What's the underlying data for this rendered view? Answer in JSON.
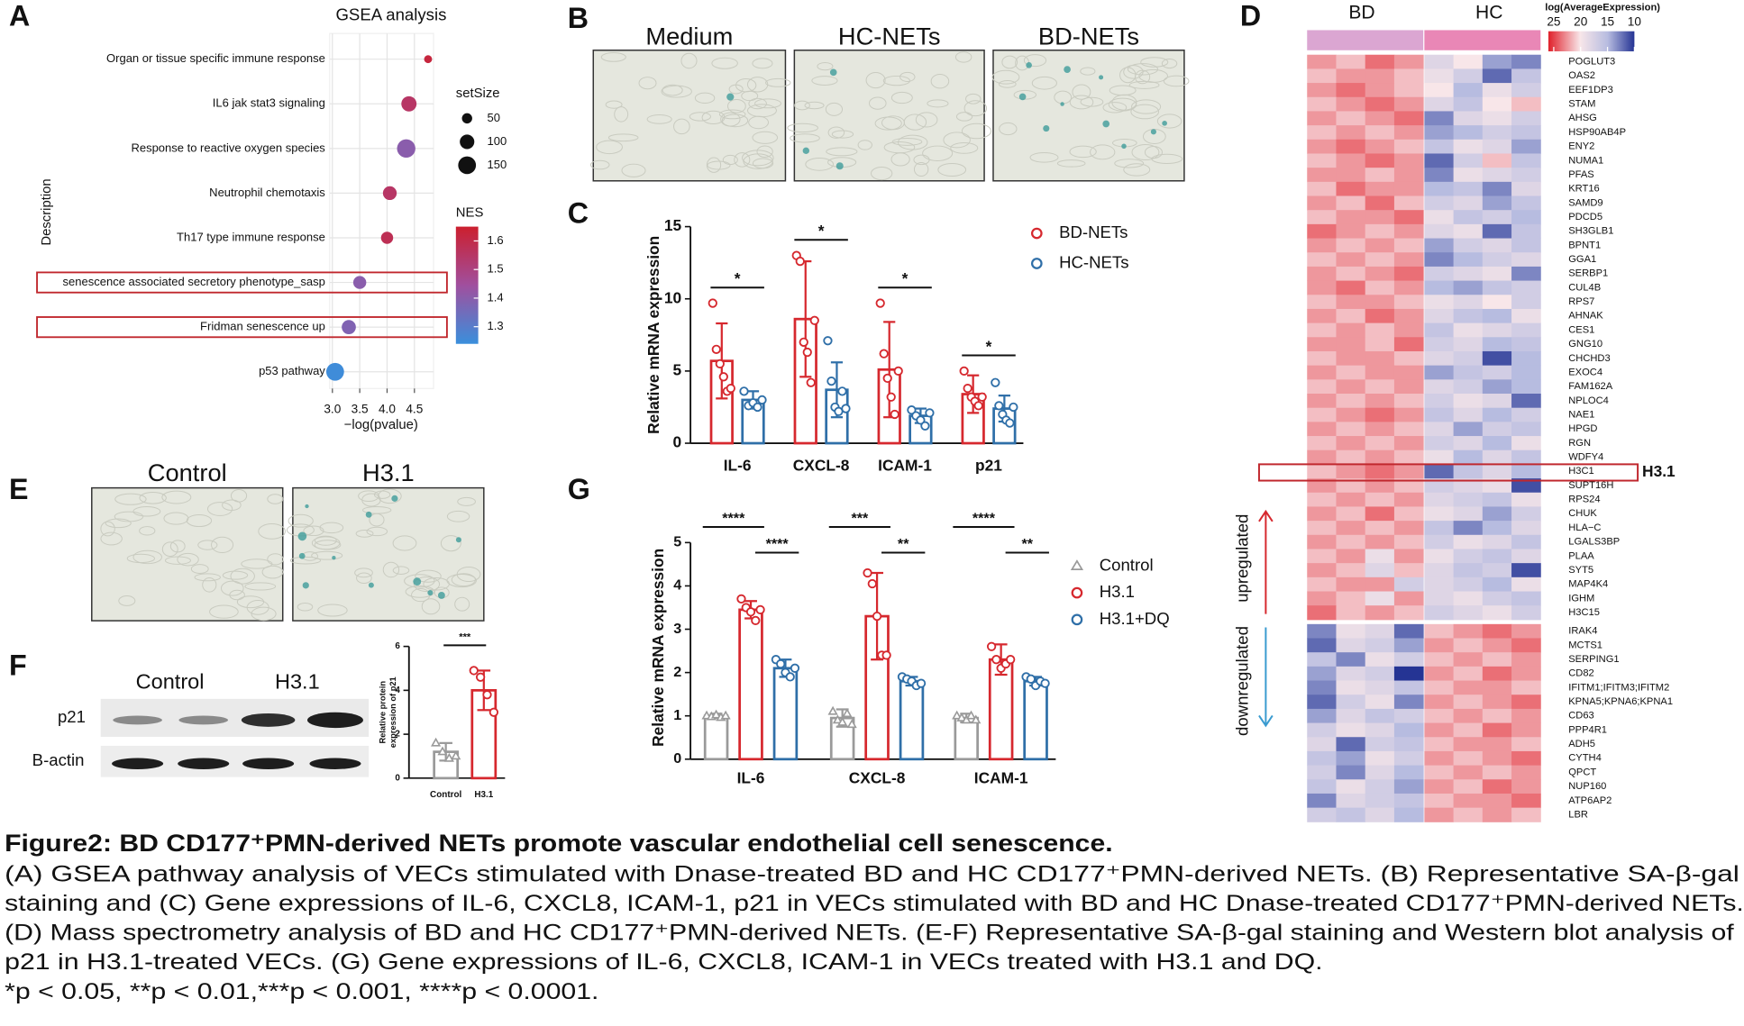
{
  "panel_labels": [
    "A",
    "B",
    "C",
    "D",
    "E",
    "F",
    "G"
  ],
  "gsea": {
    "type": "scatter",
    "title": "GSEA analysis",
    "xlabel": "−log(pvalue)",
    "ylabel": "Description",
    "categories": [
      "Organ or tissue specific immune response",
      "IL6 jak stat3 signaling",
      "Response to reactive oxygen species",
      "Neutrophil chemotaxis",
      "Th17 type immune response",
      "senescence associated secretory phenotype_sasp",
      "Fridman senescence up",
      "p53 pathway"
    ],
    "x": [
      4.75,
      4.4,
      4.35,
      4.05,
      4.0,
      3.5,
      3.3,
      3.05
    ],
    "size": [
      30,
      110,
      160,
      90,
      70,
      80,
      95,
      150
    ],
    "nes": [
      1.62,
      1.55,
      1.4,
      1.55,
      1.58,
      1.4,
      1.38,
      1.25
    ],
    "xlim": [
      2.95,
      4.85
    ],
    "xticks": [
      {
        "value": 3.0,
        "label": "3.0"
      },
      {
        "value": 3.5,
        "label": "3.5"
      },
      {
        "value": 4.0,
        "label": "4.0"
      },
      {
        "value": 4.5,
        "label": "4.5"
      }
    ],
    "grid": true,
    "size_legend_title": "setSize",
    "size_legend": [
      50,
      100,
      150
    ],
    "color_legend_title": "NES",
    "color_ticks": [
      1.3,
      1.4,
      1.5,
      1.6
    ],
    "color_range": [
      1.24,
      1.65
    ],
    "colors": [
      "#3a8fdc",
      "#a04f9e",
      "#cc1f2e"
    ],
    "highlighted": [
      5,
      6
    ]
  },
  "staining_b": {
    "labels": [
      "Medium",
      "HC-NETs",
      "BD-NETs"
    ]
  },
  "mrna_c": {
    "type": "bar",
    "ylabel": "Relative mRNA expression",
    "categories": [
      "IL-6",
      "CXCL-8",
      "ICAM-1",
      "p21"
    ],
    "ylim": [
      0,
      15
    ],
    "yticks": [
      0,
      5,
      10,
      15
    ],
    "series": [
      {
        "name": "BD-NETs",
        "color": "#d6282e",
        "values": [
          5.7,
          8.6,
          5.1,
          3.4
        ],
        "errors": [
          2.6,
          4.0,
          3.3,
          1.3
        ],
        "points": [
          [
            9.7,
            6.5,
            5.5,
            4.6,
            3.6,
            3.8
          ],
          [
            13.0,
            12.6,
            7.0,
            6.3,
            4.2,
            8.5
          ],
          [
            9.7,
            6.2,
            4.5,
            3.2,
            2.0,
            5.0
          ],
          [
            5.0,
            3.8,
            3.2,
            2.9,
            2.6,
            3.2
          ]
        ]
      },
      {
        "name": "HC-NETs",
        "color": "#2f6fa8",
        "values": [
          3.0,
          3.7,
          1.9,
          2.4
        ],
        "errors": [
          0.6,
          1.9,
          0.5,
          0.9
        ],
        "points": [
          [
            3.6,
            2.6,
            2.8,
            2.5,
            3.0
          ],
          [
            7.1,
            4.3,
            2.5,
            2.2,
            3.6,
            2.4
          ],
          [
            2.3,
            1.9,
            1.6,
            1.2,
            2.1
          ],
          [
            4.2,
            2.6,
            2.0,
            1.6,
            1.4,
            2.5
          ]
        ]
      }
    ],
    "significance": [
      "*",
      "*",
      "*",
      "*"
    ]
  },
  "heatmap_d": {
    "type": "heatmap",
    "groups": [
      "BD",
      "HC"
    ],
    "group_colors": [
      "#dba6d2",
      "#e987b6"
    ],
    "legend_title": "log(AverageExpression)",
    "legend_ticks": [
      25,
      20,
      15,
      10
    ],
    "legend_range": [
      26,
      10
    ],
    "colorscale": [
      [
        25,
        "#e0202a"
      ],
      [
        20,
        "#f8e6e9"
      ],
      [
        15,
        "#b7bce0"
      ],
      [
        10,
        "#253494"
      ]
    ],
    "up_label": "upregulated",
    "down_label": "downregulated",
    "highlight_index": 29,
    "highlight_label": "H3.1",
    "up_genes": [
      "POGLUT3",
      "OAS2",
      "EEF1DP3",
      "STAM",
      "AHSG",
      "HSP90AB4P",
      "ENY2",
      "NUMA1",
      "PFAS",
      "KRT16",
      "SAMD9",
      "PDCD5",
      "SH3GLB1",
      "BPNT1",
      "GGA1",
      "SERBP1",
      "CUL4B",
      "RPS7",
      "AHNAK",
      "CES1",
      "GNG10",
      "CHCHD3",
      "EXOC4",
      "FAM162A",
      "NPLOC4",
      "NAE1",
      "HPGD",
      "RGN",
      "WDFY4",
      "H3C1",
      "SUPT16H",
      "RPS24",
      "CHUK",
      "HLA−C",
      "LGALS3BP",
      "PLAA",
      "SYT5",
      "MAP4K4",
      "IGHM",
      "H3C15"
    ],
    "up_matrix": [
      [
        22,
        21,
        23,
        22,
        18,
        20,
        14,
        13
      ],
      [
        21,
        22,
        22,
        21,
        19,
        17,
        12,
        16
      ],
      [
        22,
        23,
        22,
        21,
        20,
        15,
        19,
        17
      ],
      [
        21,
        22,
        23,
        22,
        18,
        16,
        20,
        21
      ],
      [
        22,
        21,
        22,
        23,
        13,
        18,
        19,
        17
      ],
      [
        21,
        22,
        21,
        22,
        14,
        15,
        17,
        16
      ],
      [
        22,
        23,
        22,
        21,
        16,
        19,
        18,
        14
      ],
      [
        21,
        22,
        23,
        22,
        12,
        17,
        21,
        16
      ],
      [
        22,
        22,
        21,
        22,
        13,
        19,
        18,
        17
      ],
      [
        21,
        23,
        22,
        22,
        15,
        16,
        13,
        18
      ],
      [
        22,
        21,
        23,
        21,
        17,
        18,
        14,
        16
      ],
      [
        21,
        22,
        22,
        23,
        19,
        16,
        17,
        15
      ],
      [
        23,
        22,
        21,
        22,
        18,
        19,
        12,
        16
      ],
      [
        22,
        21,
        22,
        21,
        14,
        17,
        18,
        16
      ],
      [
        21,
        22,
        21,
        22,
        13,
        15,
        17,
        18
      ],
      [
        22,
        21,
        22,
        23,
        17,
        18,
        19,
        13
      ],
      [
        22,
        23,
        21,
        22,
        15,
        14,
        16,
        17
      ],
      [
        21,
        22,
        22,
        21,
        19,
        18,
        20,
        17
      ],
      [
        22,
        21,
        23,
        22,
        18,
        16,
        15,
        19
      ],
      [
        21,
        22,
        21,
        22,
        16,
        19,
        18,
        17
      ],
      [
        22,
        22,
        21,
        23,
        17,
        18,
        15,
        16
      ],
      [
        21,
        22,
        22,
        21,
        18,
        17,
        11,
        15
      ],
      [
        22,
        21,
        22,
        22,
        14,
        16,
        17,
        15
      ],
      [
        21,
        22,
        21,
        22,
        18,
        17,
        14,
        15
      ],
      [
        22,
        21,
        22,
        21,
        17,
        19,
        18,
        12
      ],
      [
        21,
        22,
        23,
        22,
        16,
        18,
        15,
        17
      ],
      [
        22,
        21,
        22,
        21,
        18,
        14,
        17,
        16
      ],
      [
        21,
        22,
        21,
        22,
        17,
        18,
        15,
        19
      ],
      [
        22,
        21,
        22,
        21,
        19,
        15,
        18,
        16
      ],
      [
        21,
        22,
        23,
        22,
        12,
        16,
        18,
        15
      ],
      [
        22,
        21,
        22,
        21,
        17,
        18,
        19,
        11
      ],
      [
        21,
        22,
        21,
        22,
        18,
        17,
        16,
        19
      ],
      [
        22,
        21,
        23,
        21,
        19,
        18,
        14,
        17
      ],
      [
        21,
        22,
        21,
        22,
        16,
        13,
        15,
        18
      ],
      [
        22,
        21,
        22,
        21,
        17,
        19,
        18,
        16
      ],
      [
        21,
        22,
        19,
        22,
        19,
        17,
        16,
        18
      ],
      [
        22,
        21,
        18,
        21,
        18,
        16,
        17,
        11
      ],
      [
        21,
        22,
        22,
        17,
        18,
        17,
        15,
        19
      ],
      [
        22,
        21,
        19,
        22,
        18,
        19,
        17,
        16
      ],
      [
        23,
        21,
        22,
        21,
        17,
        18,
        19,
        17
      ]
    ],
    "down_genes": [
      "IRAK4",
      "MCTS1",
      "SERPING1",
      "CD82",
      "IFITM1;IFITM3;IFITM2",
      "KPNA5;KPNA6;KPNA1",
      "CD63",
      "PPP4R1",
      "ADH5",
      "CYTH4",
      "QPCT",
      "NUP160",
      "ATP6AP2",
      "LBR"
    ],
    "down_matrix": [
      [
        13,
        19,
        18,
        12,
        21,
        22,
        23,
        22
      ],
      [
        12,
        18,
        17,
        14,
        22,
        21,
        22,
        23
      ],
      [
        16,
        13,
        19,
        17,
        21,
        22,
        21,
        22
      ],
      [
        14,
        18,
        17,
        10,
        22,
        21,
        23,
        22
      ],
      [
        13,
        19,
        18,
        16,
        21,
        22,
        22,
        21
      ],
      [
        12,
        17,
        19,
        13,
        22,
        21,
        22,
        23
      ],
      [
        14,
        18,
        16,
        17,
        21,
        22,
        21,
        22
      ],
      [
        17,
        19,
        18,
        15,
        22,
        21,
        23,
        22
      ],
      [
        18,
        12,
        17,
        16,
        21,
        22,
        22,
        21
      ],
      [
        16,
        14,
        19,
        17,
        22,
        21,
        22,
        23
      ],
      [
        17,
        13,
        18,
        15,
        21,
        22,
        21,
        22
      ],
      [
        16,
        19,
        17,
        14,
        22,
        21,
        23,
        22
      ],
      [
        13,
        18,
        17,
        16,
        21,
        22,
        22,
        23
      ],
      [
        17,
        16,
        18,
        15,
        22,
        21,
        22,
        21
      ]
    ]
  },
  "staining_e": {
    "labels": [
      "Control",
      "H3.1"
    ]
  },
  "blot_f": {
    "lanes": [
      "Control",
      "H3.1"
    ],
    "rows": [
      "p21",
      "B-actin"
    ]
  },
  "protein_f": {
    "type": "bar",
    "ylabel": [
      "Relative protein",
      "expression of p21"
    ],
    "categories": [
      "Control",
      "H3.1"
    ],
    "colors": [
      "#9a9a9a",
      "#d6282e"
    ],
    "values": [
      1.2,
      4.0
    ],
    "errors": [
      0.4,
      0.9
    ],
    "points": [
      [
        1.6,
        1.2,
        0.9,
        1.0
      ],
      [
        4.9,
        4.6,
        3.8,
        3.0
      ]
    ],
    "ylim": [
      0,
      6
    ],
    "yticks": [
      0,
      2,
      4,
      6
    ],
    "significance": "***"
  },
  "mrna_g": {
    "type": "bar",
    "ylabel": "Relative mRNA expression",
    "categories": [
      "IL-6",
      "CXCL-8",
      "ICAM-1"
    ],
    "ylim": [
      0,
      5
    ],
    "yticks": [
      0,
      1,
      2,
      3,
      4,
      5
    ],
    "series": [
      {
        "name": "Control",
        "color": "#9a9a9a",
        "marker": "triangle",
        "values": [
          1.0,
          0.95,
          0.95
        ],
        "errors": [
          0.05,
          0.2,
          0.1
        ],
        "points": [
          [
            1.0,
            0.98,
            1.02,
            0.96,
            1.0
          ],
          [
            1.1,
            0.9,
            0.85,
            1.05,
            0.8
          ],
          [
            1.0,
            0.95,
            0.9,
            1.0,
            0.9
          ]
        ]
      },
      {
        "name": "H3.1",
        "color": "#d6282e",
        "marker": "circle",
        "values": [
          3.45,
          3.3,
          2.3
        ],
        "errors": [
          0.2,
          1.0,
          0.35
        ],
        "points": [
          [
            3.7,
            3.5,
            3.4,
            3.2,
            3.45
          ],
          [
            4.3,
            4.05,
            3.3,
            2.4,
            2.4
          ],
          [
            2.6,
            2.3,
            2.1,
            2.2,
            2.3
          ]
        ]
      },
      {
        "name": "H3.1+DQ",
        "color": "#2f6fa8",
        "marker": "circle",
        "values": [
          2.1,
          1.8,
          1.8
        ],
        "errors": [
          0.2,
          0.1,
          0.1
        ],
        "points": [
          [
            2.3,
            2.2,
            2.0,
            1.9,
            2.1
          ],
          [
            1.9,
            1.85,
            1.8,
            1.7,
            1.75
          ],
          [
            1.9,
            1.85,
            1.7,
            1.8,
            1.75
          ]
        ]
      }
    ],
    "significance": [
      [
        "****",
        "****"
      ],
      [
        "***",
        "**"
      ],
      [
        "****",
        "**"
      ]
    ]
  },
  "caption": {
    "title": "Figure2: BD CD177⁺PMN-derived NETs promote vascular endothelial cell senescence.",
    "lines": [
      "(A) GSEA pathway analysis of VECs stimulated with Dnase-treated BD and HC CD177⁺PMN-derived NETs. (B) Representative SA-β-gal",
      "staining and (C) Gene expressions of IL-6, CXCL8, ICAM-1, p21 in VECs stimulated with BD and HC Dnase-treated CD177⁺PMN-derived NETs.",
      "(D) Mass spectrometry analysis of BD and HC CD177⁺PMN-derived NETs. (E-F) Representative SA-β-gal staining and Western blot analysis of",
      "p21 in H3.1-treated VECs. (G) Gene expressions of IL-6, CXCL8, ICAM-1 in VECs treated with H3.1 and DQ.",
      "*p < 0.05, **p < 0.01,***p < 0.001, ****p < 0.0001."
    ]
  }
}
